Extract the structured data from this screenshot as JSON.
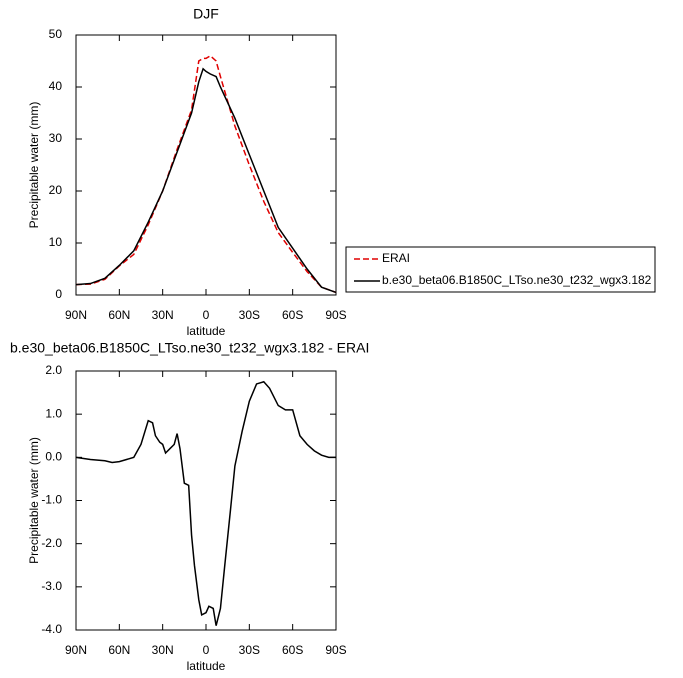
{
  "chart_data": [
    {
      "type": "line",
      "title": "DJF",
      "xlabel": "latitude",
      "ylabel": "Precipitable water (mm)",
      "x": [
        90,
        80,
        70,
        60,
        50,
        40,
        30,
        20,
        10,
        5,
        2,
        0,
        -3,
        -7,
        -10,
        -20,
        -30,
        -40,
        -50,
        -60,
        -70,
        -80,
        -90
      ],
      "series": [
        {
          "name": "ERAI",
          "color": "#e00000",
          "dash": true,
          "values": [
            2,
            2.1,
            3,
            5.6,
            7.8,
            13.5,
            20,
            28,
            35.6,
            45,
            45.5,
            45.5,
            46,
            45,
            42,
            32.5,
            25,
            18,
            12,
            8.2,
            4.5,
            1.5,
            0.5
          ]
        },
        {
          "name": "b.e30_beta06.B1850C_LTso.ne30_t232_wgx3.182",
          "color": "#000000",
          "dash": false,
          "values": [
            2,
            2.2,
            3.2,
            5.7,
            8.5,
            14,
            20,
            27.5,
            35,
            41,
            43.5,
            43,
            42.5,
            42,
            40,
            34,
            27,
            20,
            13,
            9,
            5,
            1.5,
            0.5
          ]
        }
      ],
      "xlim": [
        90,
        -90
      ],
      "xticks": [
        {
          "value": 90,
          "label": "90N"
        },
        {
          "value": 60,
          "label": "60N"
        },
        {
          "value": 30,
          "label": "30N"
        },
        0,
        {
          "value": -30,
          "label": "30S"
        },
        {
          "value": -60,
          "label": "60S"
        },
        {
          "value": -90,
          "label": "90S"
        }
      ],
      "ylim": [
        0,
        50
      ],
      "yticks": [
        0,
        10,
        20,
        30,
        40,
        50
      ],
      "legend": "outside-right"
    },
    {
      "type": "line",
      "title": "b.e30_beta06.B1850C_LTso.ne30_t232_wgx3.182 - ERAI",
      "xlabel": "latitude",
      "ylabel": "Precipitable water (mm)",
      "x": [
        90,
        80,
        70,
        65,
        60,
        55,
        50,
        45,
        40,
        37,
        35,
        32,
        30,
        28,
        25,
        22,
        20,
        18,
        15,
        12,
        10,
        8,
        5,
        3,
        0,
        -2,
        -5,
        -7,
        -10,
        -13,
        -17,
        -20,
        -25,
        -30,
        -35,
        -40,
        -44,
        -50,
        -55,
        -60,
        -65,
        -70,
        -75,
        -80,
        -85,
        -90
      ],
      "series": [
        {
          "color": "#000000",
          "dash": false,
          "values": [
            0,
            -0.05,
            -0.08,
            -0.12,
            -0.1,
            -0.05,
            0.0,
            0.3,
            0.85,
            0.8,
            0.5,
            0.35,
            0.3,
            0.1,
            0.2,
            0.3,
            0.55,
            0.2,
            -0.6,
            -0.65,
            -1.8,
            -2.5,
            -3.3,
            -3.65,
            -3.6,
            -3.45,
            -3.5,
            -3.9,
            -3.5,
            -2.5,
            -1.2,
            -0.2,
            0.6,
            1.3,
            1.7,
            1.75,
            1.6,
            1.2,
            1.1,
            1.1,
            0.5,
            0.3,
            0.15,
            0.05,
            0.0,
            0.0
          ]
        }
      ],
      "xlim": [
        90,
        -90
      ],
      "xticks": [
        {
          "value": 90,
          "label": "90N"
        },
        {
          "value": 60,
          "label": "60N"
        },
        {
          "value": 30,
          "label": "30N"
        },
        0,
        {
          "value": -30,
          "label": "30S"
        },
        {
          "value": -60,
          "label": "60S"
        },
        {
          "value": -90,
          "label": "90S"
        }
      ],
      "ylim": [
        -4,
        2
      ],
      "yticks": [
        {
          "value": 2,
          "label": "2.0"
        },
        {
          "value": 1,
          "label": "1.0"
        },
        {
          "value": 0,
          "label": "0.0"
        },
        {
          "value": -1,
          "label": "-1.0"
        },
        {
          "value": -2,
          "label": "-2.0"
        },
        {
          "value": -3,
          "label": "-3.0"
        },
        {
          "value": -4,
          "label": "-4.0"
        }
      ]
    }
  ]
}
